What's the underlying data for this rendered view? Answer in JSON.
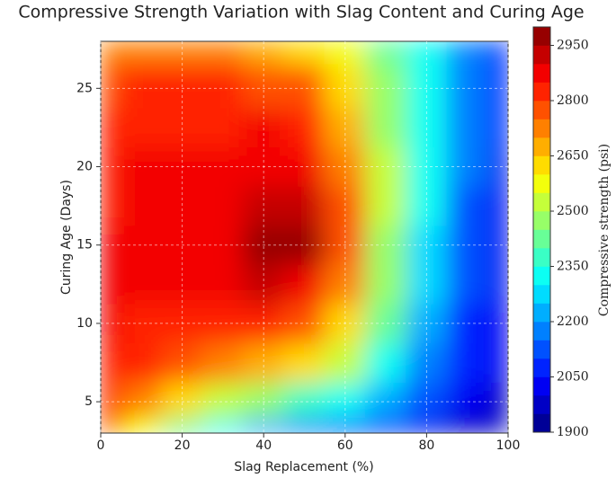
{
  "chart_data": {
    "type": "contour",
    "title": "Compressive Strength Variation with Slag Content and Curing Age",
    "x_label": "Slag Replacement (%)",
    "y_label": "Curing Age (Days)",
    "colorbar_label": "Compressive strength (psi)",
    "x": [
      0,
      10,
      20,
      30,
      40,
      50,
      60,
      70,
      80,
      90,
      100
    ],
    "y": [
      3,
      5,
      7.5,
      10,
      12.5,
      15,
      17.5,
      20,
      22.5,
      25,
      28
    ],
    "z": [
      [
        2750,
        2550,
        2400,
        2300,
        2200,
        2150,
        2100,
        2050,
        2000,
        1960,
        1950
      ],
      [
        2820,
        2700,
        2600,
        2520,
        2450,
        2380,
        2300,
        2200,
        2100,
        2020,
        1980
      ],
      [
        2840,
        2800,
        2760,
        2720,
        2680,
        2620,
        2500,
        2330,
        2180,
        2060,
        2000
      ],
      [
        2850,
        2840,
        2830,
        2820,
        2810,
        2780,
        2650,
        2420,
        2240,
        2090,
        2010
      ],
      [
        2850,
        2850,
        2860,
        2870,
        2900,
        2880,
        2720,
        2460,
        2270,
        2110,
        2020
      ],
      [
        2850,
        2850,
        2850,
        2880,
        2950,
        2960,
        2760,
        2490,
        2290,
        2130,
        2030
      ],
      [
        2840,
        2850,
        2850,
        2870,
        2930,
        2930,
        2760,
        2500,
        2300,
        2140,
        2040
      ],
      [
        2840,
        2850,
        2850,
        2860,
        2890,
        2880,
        2730,
        2500,
        2310,
        2150,
        2040
      ],
      [
        2800,
        2830,
        2840,
        2840,
        2850,
        2820,
        2680,
        2480,
        2310,
        2150,
        2050
      ],
      [
        2760,
        2800,
        2810,
        2800,
        2790,
        2750,
        2620,
        2450,
        2300,
        2150,
        2050
      ],
      [
        2700,
        2700,
        2720,
        2700,
        2680,
        2650,
        2550,
        2420,
        2300,
        2150,
        2050
      ]
    ],
    "xlim": [
      0,
      100
    ],
    "xticks": [
      0,
      20,
      40,
      60,
      80,
      100
    ],
    "ylim": [
      3,
      28
    ],
    "yticks": [
      5,
      10,
      15,
      20,
      25
    ],
    "clim": [
      1900,
      3000
    ],
    "cticks": [
      1900,
      2050,
      2200,
      2350,
      2500,
      2650,
      2800,
      2950
    ],
    "colormap": "jet",
    "grid": true
  }
}
